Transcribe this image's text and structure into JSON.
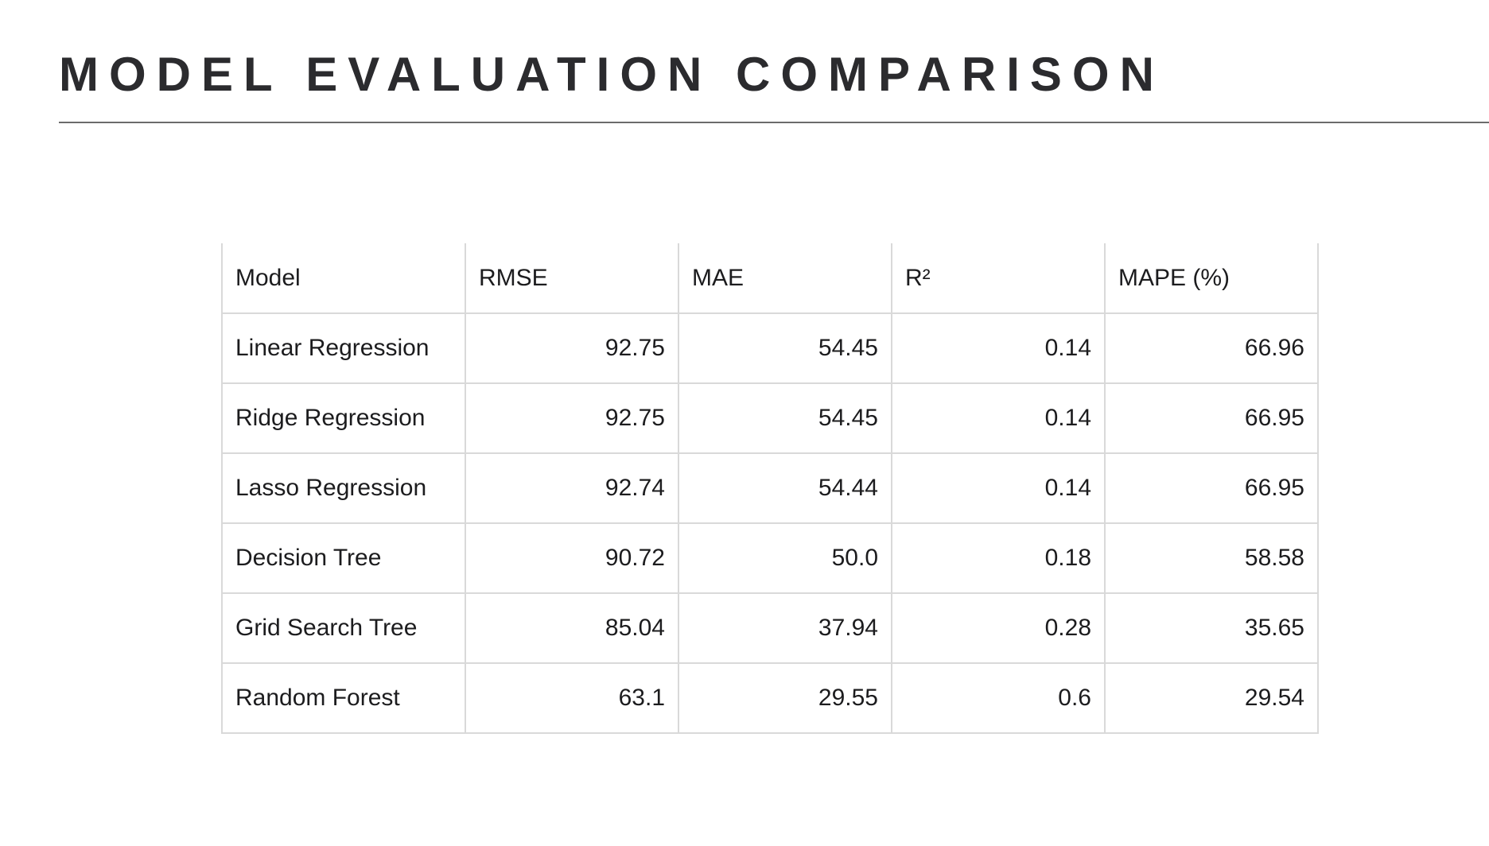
{
  "page": {
    "title": "MODEL EVALUATION COMPARISON"
  },
  "table": {
    "headers": [
      "Model",
      "RMSE",
      "MAE",
      "R²",
      "MAPE (%)"
    ],
    "rows": [
      {
        "model": "Linear Regression",
        "rmse": "92.75",
        "mae": "54.45",
        "r2": "0.14",
        "mape": "66.96"
      },
      {
        "model": "Ridge Regression",
        "rmse": "92.75",
        "mae": "54.45",
        "r2": "0.14",
        "mape": "66.95"
      },
      {
        "model": "Lasso Regression",
        "rmse": "92.74",
        "mae": "54.44",
        "r2": "0.14",
        "mape": "66.95"
      },
      {
        "model": "Decision Tree",
        "rmse": "90.72",
        "mae": "50.0",
        "r2": "0.18",
        "mape": "58.58"
      },
      {
        "model": "Grid Search Tree",
        "rmse": "85.04",
        "mae": "37.94",
        "r2": "0.28",
        "mape": "35.65"
      },
      {
        "model": "Random Forest",
        "rmse": "63.1",
        "mae": "29.55",
        "r2": "0.6",
        "mape": "29.54"
      }
    ]
  },
  "colors": {
    "title": "#2b2b2e",
    "text": "#1c1c1e",
    "grid": "#d9d9d9",
    "rule": "#6b6b6b"
  }
}
